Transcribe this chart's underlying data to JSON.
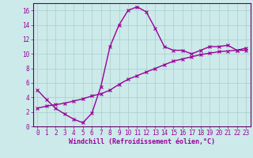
{
  "background_color": "#cceaea",
  "grid_color": "#aacccc",
  "line_color": "#990099",
  "spine_color": "#660066",
  "xlim": [
    -0.5,
    23.5
  ],
  "ylim": [
    0,
    17
  ],
  "xlabel": "Windchill (Refroidissement éolien,°C)",
  "xticks": [
    0,
    1,
    2,
    3,
    4,
    5,
    6,
    7,
    8,
    9,
    10,
    11,
    12,
    13,
    14,
    15,
    16,
    17,
    18,
    19,
    20,
    21,
    22,
    23
  ],
  "yticks": [
    0,
    2,
    4,
    6,
    8,
    10,
    12,
    14,
    16
  ],
  "curve1_x": [
    0,
    1,
    2,
    3,
    4,
    5,
    6,
    7,
    8,
    9,
    10,
    11,
    12,
    13,
    14,
    15,
    16,
    17,
    18,
    19,
    20,
    21,
    22,
    23
  ],
  "curve1_y": [
    5.0,
    3.7,
    2.5,
    1.7,
    1.0,
    0.5,
    1.8,
    5.5,
    11.0,
    14.0,
    16.0,
    16.5,
    15.8,
    13.5,
    11.0,
    10.5,
    10.5,
    10.0,
    10.5,
    11.0,
    11.0,
    11.2,
    10.5,
    10.5
  ],
  "curve2_x": [
    0,
    1,
    2,
    3,
    4,
    5,
    6,
    7,
    8,
    9,
    10,
    11,
    12,
    13,
    14,
    15,
    16,
    17,
    18,
    19,
    20,
    21,
    22,
    23
  ],
  "curve2_y": [
    2.5,
    2.8,
    3.0,
    3.2,
    3.5,
    3.8,
    4.2,
    4.5,
    5.0,
    5.8,
    6.5,
    7.0,
    7.5,
    8.0,
    8.5,
    9.0,
    9.3,
    9.6,
    9.9,
    10.1,
    10.3,
    10.4,
    10.5,
    10.8
  ],
  "marker": "x",
  "markersize": 3,
  "linewidth": 1.0,
  "tick_fontsize": 5.5,
  "xlabel_fontsize": 6.0
}
